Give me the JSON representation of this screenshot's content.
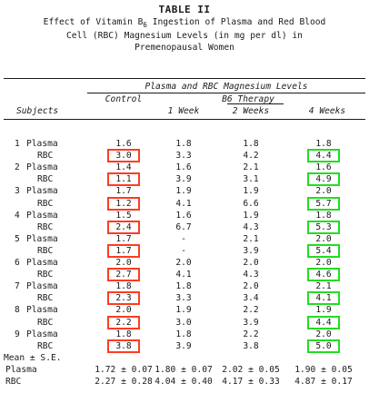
{
  "table": {
    "label": "TABLE II",
    "caption_line1_pre": "Effect of Vitamin B",
    "caption_sub": "6",
    "caption_line1_post": " Ingestion of Plasma and Red Blood",
    "caption_line2": "Cell (RBC) Magnesium Levels (in mg per dl) in",
    "caption_line3": "Premenopausal Women"
  },
  "headers": {
    "group": "Plasma and RBC Magnesium Levels",
    "therapy": "B6 Therapy",
    "subjects": "Subjects",
    "control": "Control",
    "week1": "1 Week",
    "week2": "2 Weeks",
    "week4": "4 Weeks"
  },
  "subjects": [
    {
      "num": "1",
      "rows": [
        {
          "label": "Plasma",
          "control": "1.6",
          "w1": "1.8",
          "w2": "1.8",
          "w4": "1.8"
        },
        {
          "label": "RBC",
          "control": "3.0",
          "w1": "3.3",
          "w2": "4.2",
          "w4": "4.4"
        }
      ]
    },
    {
      "num": "2",
      "rows": [
        {
          "label": "Plasma",
          "control": "1.4",
          "w1": "1.6",
          "w2": "2.1",
          "w4": "1.6"
        },
        {
          "label": "RBC",
          "control": "1.1",
          "w1": "3.9",
          "w2": "3.1",
          "w4": "4.9"
        }
      ]
    },
    {
      "num": "3",
      "rows": [
        {
          "label": "Plasma",
          "control": "1.7",
          "w1": "1.9",
          "w2": "1.9",
          "w4": "2.0"
        },
        {
          "label": "RBC",
          "control": "1.2",
          "w1": "4.1",
          "w2": "6.6",
          "w4": "5.7"
        }
      ]
    },
    {
      "num": "4",
      "rows": [
        {
          "label": "Plasma",
          "control": "1.5",
          "w1": "1.6",
          "w2": "1.9",
          "w4": "1.8"
        },
        {
          "label": "RBC",
          "control": "2.4",
          "w1": "6.7",
          "w2": "4.3",
          "w4": "5.3"
        }
      ]
    },
    {
      "num": "5",
      "rows": [
        {
          "label": "Plasma",
          "control": "1.7",
          "w1": "-",
          "w2": "2.1",
          "w4": "2.0"
        },
        {
          "label": "RBC",
          "control": "1.7",
          "w1": "-",
          "w2": "3.9",
          "w4": "5.4"
        }
      ]
    },
    {
      "num": "6",
      "rows": [
        {
          "label": "Plasma",
          "control": "2.0",
          "w1": "2.0",
          "w2": "2.0",
          "w4": "2.0"
        },
        {
          "label": "RBC",
          "control": "2.7",
          "w1": "4.1",
          "w2": "4.3",
          "w4": "4.6"
        }
      ]
    },
    {
      "num": "7",
      "rows": [
        {
          "label": "Plasma",
          "control": "1.8",
          "w1": "1.8",
          "w2": "2.0",
          "w4": "2.1"
        },
        {
          "label": "RBC",
          "control": "2.3",
          "w1": "3.3",
          "w2": "3.4",
          "w4": "4.1"
        }
      ]
    },
    {
      "num": "8",
      "rows": [
        {
          "label": "Plasma",
          "control": "2.0",
          "w1": "1.9",
          "w2": "2.2",
          "w4": "1.9"
        },
        {
          "label": "RBC",
          "control": "2.2",
          "w1": "3.0",
          "w2": "3.9",
          "w4": "4.4"
        }
      ]
    },
    {
      "num": "9",
      "rows": [
        {
          "label": "Plasma",
          "control": "1.8",
          "w1": "1.8",
          "w2": "2.2",
          "w4": "2.0"
        },
        {
          "label": "RBC",
          "control": "3.8",
          "w1": "3.9",
          "w2": "3.8",
          "w4": "5.0"
        }
      ]
    }
  ],
  "summary": {
    "label": "Mean ± S.E.",
    "rows": [
      {
        "label": "Plasma",
        "control": "1.72 ± 0.07",
        "w1": "1.80 ± 0.07",
        "w2": "2.02 ± 0.05",
        "w4": "1.90 ± 0.05"
      },
      {
        "label": "RBC",
        "control": "2.27 ± 0.28",
        "w1": "4.04 ± 0.40",
        "w2": "4.17 ± 0.33",
        "w4": "4.87 ± 0.17"
      }
    ]
  },
  "highlight": {
    "control_rbc_color": "#ff3b21",
    "week4_rbc_color": "#22dd22"
  }
}
